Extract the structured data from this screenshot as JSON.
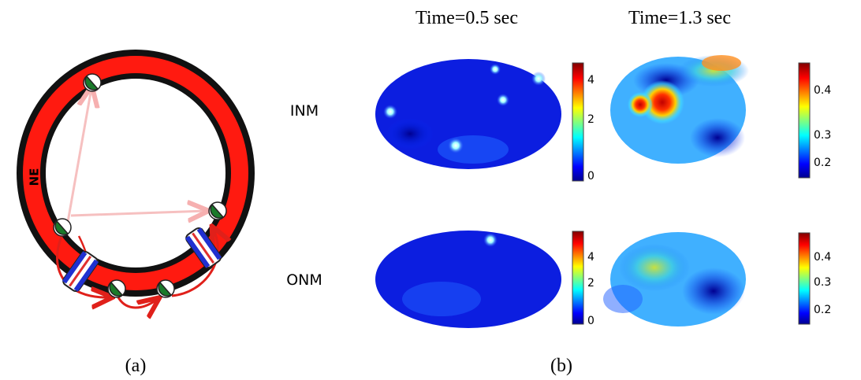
{
  "panel_a": {
    "ring_label": "NE",
    "caption": "(a)"
  },
  "panel_b": {
    "caption": "(b)",
    "columns": [
      "Time=0.5 sec",
      "Time=1.3 sec"
    ],
    "rows": [
      "INM",
      "ONM"
    ],
    "colorbar_ticks": [
      [
        4,
        2,
        0
      ],
      [
        0.4,
        0.3,
        0.2
      ],
      [
        4,
        2,
        0
      ],
      [
        0.4,
        0.3,
        0.2
      ]
    ]
  }
}
